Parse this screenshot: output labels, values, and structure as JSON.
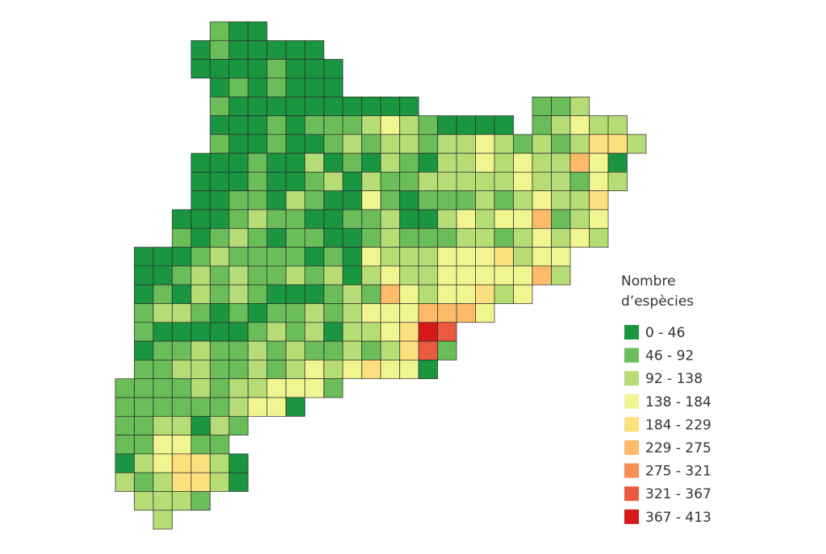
{
  "map": {
    "legend": {
      "title": [
        "Nombre",
        "d’espècies"
      ],
      "classes": [
        {
          "label": "0 - 46",
          "color": "#1a9641"
        },
        {
          "label": "46 - 92",
          "color": "#6abd58"
        },
        {
          "label": "92 - 138",
          "color": "#b5dc75"
        },
        {
          "label": "138 - 184",
          "color": "#f1f590"
        },
        {
          "label": "184 - 229",
          "color": "#fde07e"
        },
        {
          "label": "229 - 275",
          "color": "#fdbb6a"
        },
        {
          "label": "275 - 321",
          "color": "#f98d52"
        },
        {
          "label": "321 - 367",
          "color": "#ea5a3f"
        },
        {
          "label": "367 - 413",
          "color": "#d7191c"
        }
      ]
    },
    "grid": [
      [
        null,
        null,
        null,
        null,
        null,
        1,
        0,
        0
      ],
      [
        null,
        null,
        null,
        null,
        0,
        1,
        0,
        0,
        0,
        0,
        0
      ],
      [
        null,
        null,
        null,
        null,
        0,
        0,
        0,
        0,
        1,
        0,
        0,
        0
      ],
      [
        null,
        null,
        null,
        null,
        null,
        0,
        1,
        0,
        1,
        0,
        0,
        0
      ],
      [
        null,
        null,
        null,
        null,
        null,
        1,
        0,
        0,
        0,
        0,
        0,
        0,
        0,
        0,
        0,
        0,
        null,
        null,
        null,
        null,
        null,
        null,
        1,
        1,
        2
      ],
      [
        null,
        null,
        null,
        null,
        null,
        0,
        0,
        0,
        1,
        0,
        1,
        1,
        1,
        2,
        3,
        2,
        1,
        0,
        0,
        0,
        0,
        null,
        1,
        2,
        3,
        2,
        2
      ],
      [
        null,
        null,
        null,
        null,
        null,
        1,
        0,
        0,
        1,
        0,
        0,
        1,
        2,
        1,
        2,
        2,
        1,
        2,
        2,
        3,
        2,
        1,
        2,
        1,
        2,
        4,
        4,
        2
      ],
      [
        null,
        null,
        null,
        null,
        0,
        0,
        0,
        1,
        0,
        0,
        2,
        0,
        1,
        0,
        2,
        1,
        0,
        2,
        2,
        3,
        2,
        3,
        2,
        2,
        5,
        3,
        0
      ],
      [
        null,
        null,
        null,
        null,
        0,
        0,
        0,
        1,
        0,
        0,
        1,
        2,
        0,
        2,
        1,
        1,
        2,
        2,
        2,
        2,
        2,
        3,
        2,
        2,
        1,
        3,
        2
      ],
      [
        null,
        null,
        null,
        null,
        0,
        0,
        1,
        1,
        0,
        2,
        1,
        0,
        0,
        3,
        1,
        0,
        1,
        1,
        1,
        2,
        1,
        2,
        3,
        2,
        2,
        4
      ],
      [
        null,
        null,
        null,
        0,
        0,
        0,
        1,
        2,
        1,
        1,
        0,
        0,
        1,
        1,
        2,
        0,
        0,
        2,
        3,
        2,
        3,
        3,
        5,
        1,
        2,
        3
      ],
      [
        null,
        null,
        null,
        1,
        0,
        1,
        2,
        1,
        0,
        1,
        1,
        0,
        0,
        1,
        2,
        1,
        1,
        1,
        2,
        2,
        1,
        2,
        3,
        2,
        3,
        2
      ],
      [
        null,
        0,
        0,
        0,
        1,
        2,
        1,
        1,
        1,
        1,
        0,
        1,
        0,
        3,
        2,
        2,
        2,
        3,
        3,
        3,
        4,
        2,
        3,
        3
      ],
      [
        null,
        0,
        0,
        1,
        2,
        1,
        2,
        1,
        1,
        2,
        1,
        2,
        0,
        2,
        3,
        2,
        2,
        3,
        3,
        3,
        3,
        3,
        5,
        2
      ],
      [
        null,
        0,
        1,
        0,
        2,
        1,
        2,
        1,
        0,
        0,
        0,
        1,
        2,
        1,
        5,
        3,
        2,
        3,
        3,
        4,
        2,
        3
      ],
      [
        null,
        1,
        2,
        2,
        1,
        0,
        1,
        0,
        1,
        1,
        2,
        1,
        2,
        3,
        3,
        3,
        5,
        5,
        5,
        3
      ],
      [
        null,
        1,
        0,
        0,
        0,
        0,
        0,
        1,
        2,
        1,
        2,
        0,
        2,
        2,
        3,
        4,
        8,
        7
      ],
      [
        null,
        0,
        1,
        1,
        2,
        1,
        1,
        2,
        1,
        2,
        1,
        1,
        2,
        1,
        2,
        4,
        7,
        1
      ],
      [
        null,
        1,
        1,
        2,
        2,
        1,
        1,
        2,
        1,
        2,
        3,
        2,
        3,
        4,
        3,
        3,
        0
      ],
      [
        1,
        1,
        1,
        1,
        2,
        1,
        2,
        2,
        3,
        3,
        3,
        1
      ],
      [
        1,
        1,
        1,
        1,
        1,
        1,
        2,
        3,
        3,
        0
      ],
      [
        1,
        1,
        2,
        2,
        0,
        2,
        1
      ],
      [
        1,
        1,
        3,
        3,
        1,
        1
      ],
      [
        0,
        2,
        3,
        4,
        4,
        2,
        0
      ],
      [
        2,
        1,
        2,
        4,
        4,
        2,
        0
      ],
      [
        null,
        2,
        2,
        2,
        1
      ],
      [
        null,
        null,
        2
      ]
    ]
  }
}
